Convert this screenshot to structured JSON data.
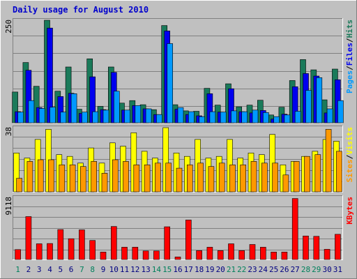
{
  "chart_data": {
    "type": "bar",
    "title": "Daily usage for August 2010",
    "categories": [
      "1",
      "2",
      "3",
      "4",
      "5",
      "6",
      "7",
      "8",
      "9",
      "10",
      "11",
      "12",
      "13",
      "14",
      "15",
      "16",
      "17",
      "18",
      "19",
      "20",
      "21",
      "22",
      "23",
      "24",
      "25",
      "26",
      "27",
      "28",
      "29",
      "30",
      "31"
    ],
    "weekend_days": [
      "1",
      "7",
      "8",
      "14",
      "15",
      "21",
      "22",
      "28",
      "29"
    ],
    "panels": [
      {
        "id": "hits",
        "ymax_label": "250",
        "ymax": 250,
        "legend": [
          "Pages",
          "/",
          "Files",
          "/",
          "Hits"
        ],
        "series": [
          {
            "name": "Hits",
            "color": "#1a7a5a",
            "values": [
              75,
              147,
              89,
              250,
              77,
              136,
              33,
              156,
              40,
              136,
              48,
              54,
              44,
              32,
              237,
              44,
              29,
              28,
              84,
              43,
              95,
              39,
              43,
              55,
              19,
              38,
              103,
              154,
              129,
              56,
              131
            ]
          },
          {
            "name": "Files",
            "color": "#0000ee",
            "values": [
              27,
              128,
              37,
              231,
              64,
              72,
              23,
              112,
              32,
              123,
              31,
              42,
              34,
              20,
              224,
              33,
              20,
              17,
              71,
              26,
              83,
              27,
              24,
              30,
              9,
              21,
              88,
              120,
              114,
              24,
              105
            ]
          },
          {
            "name": "Pages",
            "color": "#0099ff",
            "values": [
              26,
              54,
              35,
              38,
              26,
              71,
              26,
              27,
              31,
              77,
              31,
              42,
              34,
              20,
              193,
              37,
              27,
              15,
              27,
              26,
              29,
              27,
              31,
              25,
              15,
              19,
              28,
              79,
              110,
              34,
              54
            ]
          }
        ]
      },
      {
        "id": "visits",
        "ymax_label": "38",
        "ymax": 38,
        "legend": [
          "Sites",
          "/",
          "Visits"
        ],
        "series": [
          {
            "name": "Visits",
            "color": "#ffff00",
            "values": [
              23,
              20,
              31,
              37,
              22,
              21,
              17,
              26,
              17,
              29,
              27,
              35,
              24,
              20,
              38,
              23,
              21,
              31,
              20,
              21,
              31,
              20,
              23,
              22,
              34,
              16,
              18,
              21,
              24,
              31,
              30
            ]
          },
          {
            "name": "Sites",
            "color": "#ff9900",
            "values": [
              8,
              18,
              19,
              19,
              16,
              16,
              15,
              18,
              11,
              19,
              18,
              16,
              16,
              17,
              17,
              14,
              16,
              17,
              15,
              17,
              16,
              16,
              18,
              17,
              17,
              10,
              18,
              21,
              22,
              37,
              24
            ]
          }
        ]
      },
      {
        "id": "kbytes",
        "ymax_label": "9118",
        "ymax": 9118,
        "legend": [
          "KBytes"
        ],
        "series": [
          {
            "name": "KBytes",
            "color": "#ff0000",
            "values": [
              1450,
              6300,
              2300,
              2350,
              4400,
              3050,
              4350,
              2800,
              1100,
              4850,
              1800,
              1800,
              1250,
              1250,
              4800,
              370,
              5800,
              1300,
              1800,
              1300,
              2300,
              1300,
              2200,
              1800,
              1100,
              1100,
              8950,
              3450,
              3400,
              1500,
              3700
            ]
          }
        ]
      }
    ],
    "colors": {
      "title": "#0000cc",
      "weekday_label": "#000080",
      "weekend_label": "#00805c",
      "ylabel": "#000000",
      "plot_bg": "#c0c0c0",
      "frame_bg": "#c0c0c0"
    }
  }
}
